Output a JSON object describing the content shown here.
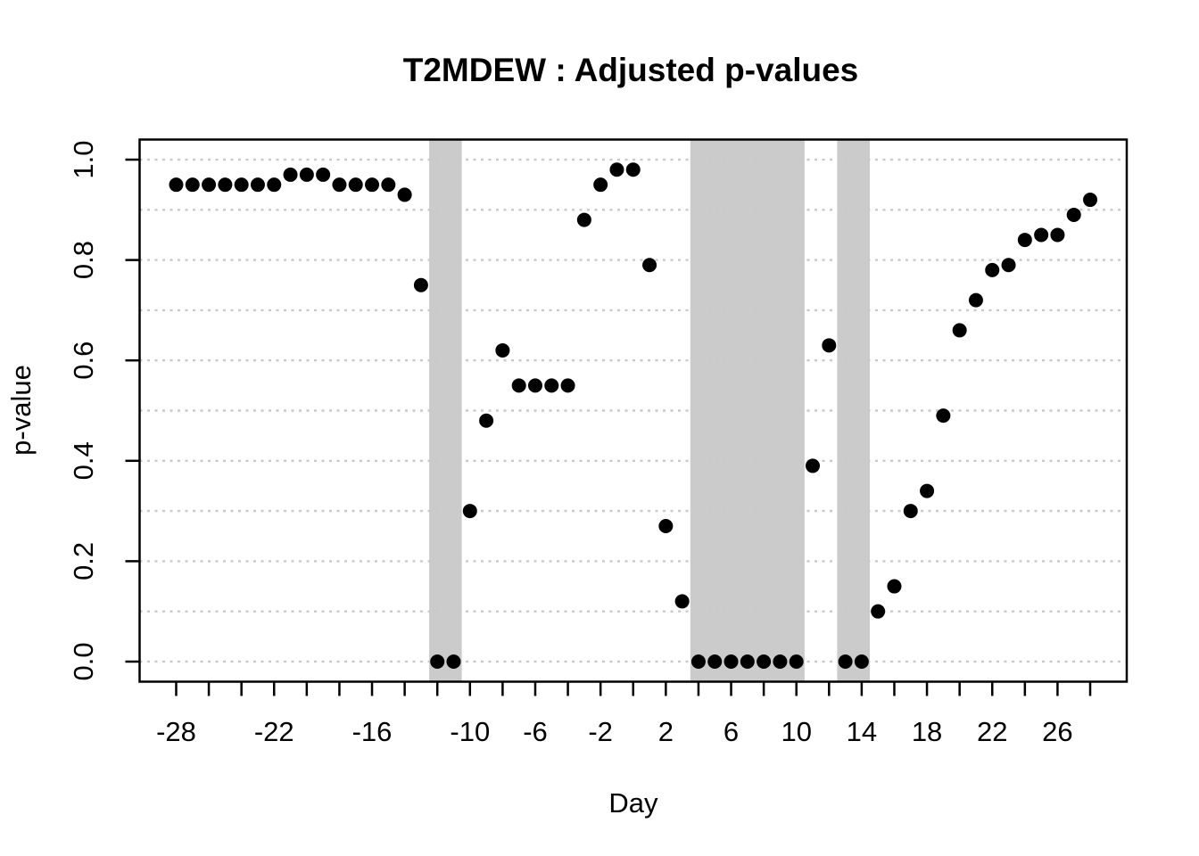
{
  "chart_data": {
    "type": "scatter",
    "title": "T2MDEW : Adjusted p-values",
    "xlabel": "Day",
    "ylabel": "p-value",
    "xlim": [
      -28,
      28
    ],
    "ylim": [
      0.0,
      1.0
    ],
    "axis_padding_fraction": 0.04,
    "grid": "horizontal-dotted",
    "legend": "none",
    "x_ticks": [
      -28,
      -26,
      -24,
      -22,
      -20,
      -18,
      -16,
      -14,
      -12,
      -10,
      -8,
      -6,
      -4,
      -2,
      0,
      2,
      4,
      6,
      8,
      10,
      12,
      14,
      16,
      18,
      20,
      22,
      24,
      26,
      28
    ],
    "x_labeled_ticks": [
      {
        "pos": -28,
        "text": "-28"
      },
      {
        "pos": -22,
        "text": "-22"
      },
      {
        "pos": -16,
        "text": "-16"
      },
      {
        "pos": -10,
        "text": "-10"
      },
      {
        "pos": -6,
        "text": "-6"
      },
      {
        "pos": -2,
        "text": "-2"
      },
      {
        "pos": 2,
        "text": "2"
      },
      {
        "pos": 6,
        "text": "6"
      },
      {
        "pos": 10,
        "text": "10"
      },
      {
        "pos": 14,
        "text": "14"
      },
      {
        "pos": 18,
        "text": "18"
      },
      {
        "pos": 22,
        "text": "22"
      },
      {
        "pos": 26,
        "text": "26"
      }
    ],
    "y_ticks": [
      0.0,
      0.2,
      0.4,
      0.6,
      0.8,
      1.0
    ],
    "y_tick_labels": [
      "0.0",
      "0.2",
      "0.4",
      "0.6",
      "0.8",
      "1.0"
    ],
    "y_gridlines": [
      0.0,
      0.1,
      0.2,
      0.3,
      0.4,
      0.5,
      0.6,
      0.7,
      0.8,
      0.9,
      1.0
    ],
    "shaded_bands": [
      {
        "from": -12.5,
        "to": -10.5
      },
      {
        "from": 3.5,
        "to": 10.5
      },
      {
        "from": 12.5,
        "to": 14.5
      }
    ],
    "points": {
      "day": [
        -28,
        -27,
        -26,
        -25,
        -24,
        -23,
        -22,
        -21,
        -20,
        -19,
        -18,
        -17,
        -16,
        -15,
        -14,
        -13,
        -12,
        -11,
        -10,
        -9,
        -8,
        -7,
        -6,
        -5,
        -4,
        -3,
        -2,
        -1,
        0,
        1,
        2,
        3,
        4,
        5,
        6,
        7,
        8,
        9,
        10,
        11,
        12,
        13,
        14,
        15,
        16,
        17,
        18,
        19,
        20,
        21,
        22,
        23,
        24,
        25,
        26,
        27,
        28
      ],
      "p_value": [
        0.95,
        0.95,
        0.95,
        0.95,
        0.95,
        0.95,
        0.95,
        0.97,
        0.97,
        0.97,
        0.95,
        0.95,
        0.95,
        0.95,
        0.93,
        0.75,
        0.0,
        0.0,
        0.3,
        0.48,
        0.62,
        0.55,
        0.55,
        0.55,
        0.55,
        0.88,
        0.95,
        0.98,
        0.98,
        0.79,
        0.27,
        0.12,
        0.0,
        0.0,
        0.0,
        0.0,
        0.0,
        0.0,
        0.0,
        0.39,
        0.63,
        0.0,
        0.0,
        0.1,
        0.15,
        0.3,
        0.34,
        0.49,
        0.66,
        0.72,
        0.78,
        0.79,
        0.84,
        0.85,
        0.85,
        0.89,
        0.92
      ]
    },
    "colors": {
      "point": "#000000",
      "band": "#cbcbcb",
      "grid": "#c9c9c9",
      "axis": "#000000",
      "background": "#ffffff"
    }
  }
}
